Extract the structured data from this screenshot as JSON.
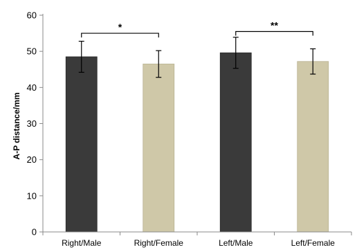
{
  "chart_data": {
    "type": "bar",
    "categories": [
      "Right/Male",
      "Right/Female",
      "Left/Male",
      "Left/Female"
    ],
    "values": [
      48.5,
      46.5,
      49.6,
      47.2
    ],
    "errors": [
      4.3,
      3.7,
      4.3,
      3.5
    ],
    "bar_colors": [
      "#3a3a3a",
      "#cfc8a8",
      "#3a3a3a",
      "#cfc8a8"
    ],
    "ylabel": "A-P distance/mm",
    "xlabel": "",
    "ylim": [
      0,
      60
    ],
    "yticks": [
      0,
      10,
      20,
      30,
      40,
      50,
      60
    ],
    "grid": false,
    "significance": [
      {
        "from": 0,
        "to": 1,
        "y": 55.0,
        "label": "*"
      },
      {
        "from": 2,
        "to": 3,
        "y": 55.5,
        "label": "**"
      }
    ]
  }
}
